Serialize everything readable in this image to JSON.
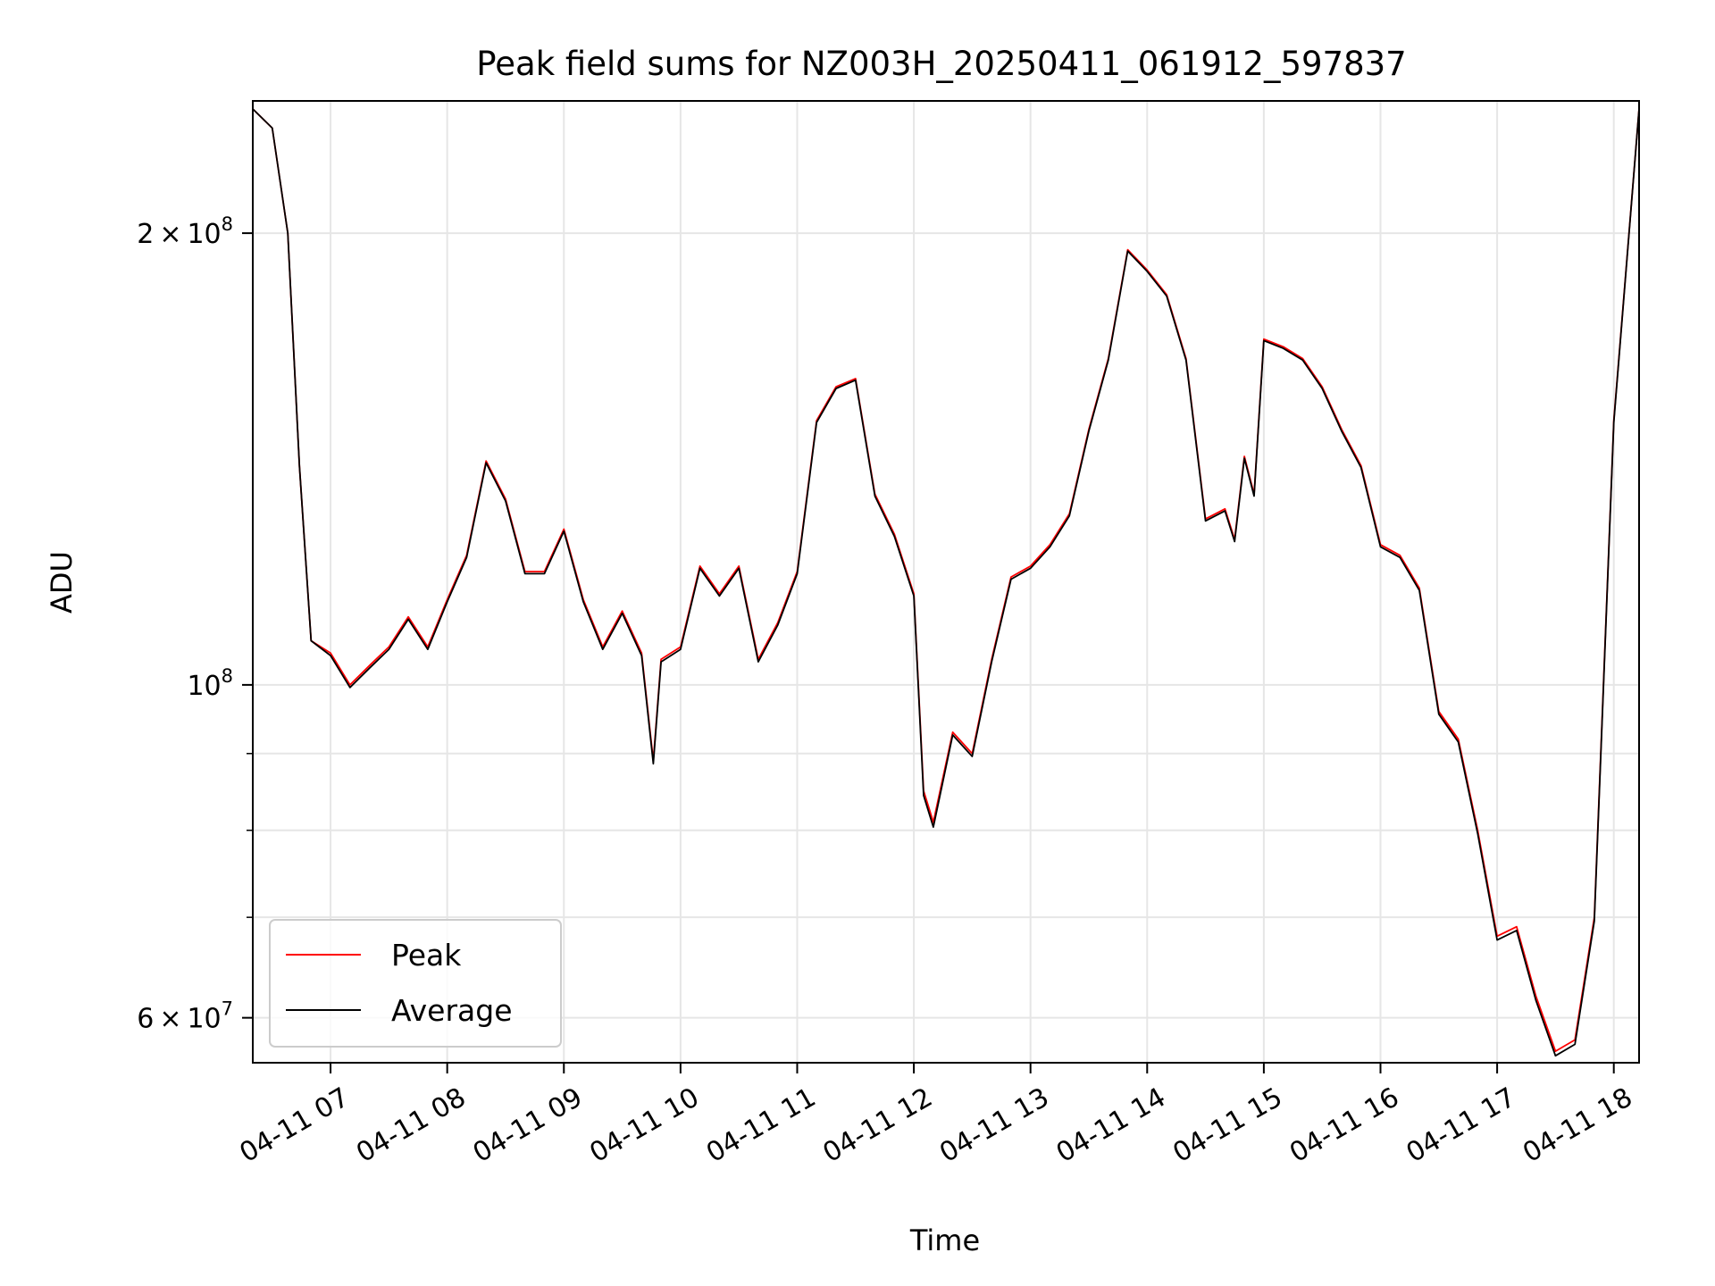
{
  "chart_data": {
    "type": "line",
    "title": "Peak field sums for NZ003H_20250411_061912_597837",
    "xlabel": "Time",
    "ylabel": "ADU",
    "y_scale": "log",
    "ylim": [
      56000000,
      245000000
    ],
    "xlim": [
      "2025-04-11 06:20",
      "2025-04-11 18:13"
    ],
    "x_tick_labels": [
      "04-11 07",
      "04-11 08",
      "04-11 09",
      "04-11 10",
      "04-11 11",
      "04-11 12",
      "04-11 13",
      "04-11 14",
      "04-11 15",
      "04-11 16",
      "04-11 17",
      "04-11 18"
    ],
    "y_tick_labels": [
      {
        "value": 200000000,
        "mantissa": "2",
        "exponent": "8"
      },
      {
        "value": 100000000,
        "mantissa": "",
        "exponent": "8"
      },
      {
        "value": 60000000,
        "mantissa": "6",
        "exponent": "7"
      }
    ],
    "y_minor_ticks": [
      70000000,
      80000000,
      90000000
    ],
    "grid": true,
    "legend_position": "bottom-left",
    "colors": {
      "Peak": "#ff0000",
      "Average": "#000000"
    },
    "x": [
      "06:20",
      "06:30",
      "06:38",
      "06:44",
      "06:50",
      "07:00",
      "07:10",
      "07:20",
      "07:30",
      "07:40",
      "07:50",
      "08:00",
      "08:10",
      "08:20",
      "08:30",
      "08:40",
      "08:50",
      "09:00",
      "09:10",
      "09:20",
      "09:30",
      "09:40",
      "09:46",
      "09:50",
      "10:00",
      "10:10",
      "10:20",
      "10:30",
      "10:40",
      "10:50",
      "11:00",
      "11:10",
      "11:20",
      "11:30",
      "11:40",
      "11:50",
      "12:00",
      "12:05",
      "12:10",
      "12:20",
      "12:30",
      "12:40",
      "12:50",
      "13:00",
      "13:10",
      "13:20",
      "13:30",
      "13:40",
      "13:50",
      "14:00",
      "14:10",
      "14:20",
      "14:30",
      "14:40",
      "14:45",
      "14:50",
      "14:55",
      "15:00",
      "15:10",
      "15:20",
      "15:30",
      "15:40",
      "15:50",
      "16:00",
      "16:10",
      "16:20",
      "16:30",
      "16:40",
      "16:50",
      "17:00",
      "17:10",
      "17:20",
      "17:30",
      "17:40",
      "17:50",
      "18:00",
      "18:13"
    ],
    "series": [
      {
        "name": "Peak",
        "values": [
          242000000,
          235000000,
          200000000,
          140000000,
          107000000,
          105000000,
          100000000,
          103000000,
          106000000,
          111000000,
          106000000,
          114000000,
          122000000,
          141000000,
          133000000,
          119000000,
          119000000,
          127000000,
          114000000,
          106000000,
          112000000,
          105000000,
          89000000,
          104000000,
          106000000,
          120000000,
          115000000,
          120000000,
          104000000,
          110000000,
          119000000,
          150000000,
          158000000,
          160000000,
          134000000,
          126000000,
          115000000,
          85000000,
          81000000,
          93000000,
          90000000,
          104000000,
          118000000,
          120000000,
          124000000,
          130000000,
          148000000,
          165000000,
          195000000,
          189000000,
          182000000,
          165000000,
          129000000,
          131000000,
          125000000,
          142000000,
          134000000,
          170000000,
          168000000,
          165000000,
          158000000,
          148000000,
          140000000,
          124000000,
          122000000,
          116000000,
          96000000,
          92000000,
          80000000,
          68000000,
          69000000,
          62000000,
          57000000,
          58000000,
          70000000,
          150000000,
          242000000
        ]
      },
      {
        "name": "Average",
        "values": [
          242000000,
          235000000,
          200000000,
          140000000,
          107000000,
          104600000,
          99600000,
          102600000,
          105600000,
          110600000,
          105600000,
          113600000,
          121600000,
          140600000,
          132600000,
          118600000,
          118600000,
          126600000,
          113600000,
          105600000,
          111600000,
          104600000,
          88600000,
          103600000,
          105600000,
          119600000,
          114600000,
          119600000,
          103600000,
          109600000,
          118600000,
          149600000,
          157600000,
          159600000,
          133600000,
          125600000,
          114600000,
          84400000,
          80400000,
          92600000,
          89600000,
          103600000,
          117600000,
          119600000,
          123600000,
          129600000,
          147600000,
          164600000,
          194600000,
          188600000,
          181600000,
          164600000,
          128600000,
          130600000,
          124600000,
          141600000,
          133600000,
          169600000,
          167600000,
          164600000,
          157600000,
          147600000,
          139600000,
          123600000,
          121600000,
          115600000,
          95600000,
          91600000,
          79600000,
          67600000,
          68600000,
          61600000,
          56600000,
          57600000,
          69600000,
          149600000,
          242000000
        ]
      }
    ]
  }
}
